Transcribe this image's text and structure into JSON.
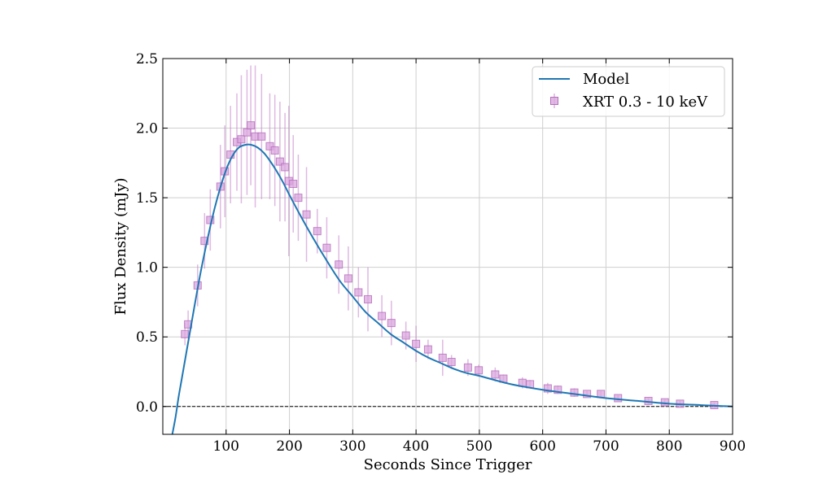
{
  "chart_data": {
    "type": "line",
    "title": "",
    "xlabel": "Seconds Since Trigger",
    "ylabel": "Flux Density (mJy)",
    "xlim": [
      0,
      900
    ],
    "ylim": [
      -0.2,
      2.5
    ],
    "xticks": [
      100,
      200,
      300,
      400,
      500,
      600,
      700,
      800,
      900
    ],
    "yticks": [
      0.0,
      0.5,
      1.0,
      1.5,
      2.0,
      2.5
    ],
    "xtick_labels": [
      "100",
      "200",
      "300",
      "400",
      "500",
      "600",
      "700",
      "800",
      "900"
    ],
    "ytick_labels": [
      "0.0",
      "0.5",
      "1.0",
      "1.5",
      "2.0",
      "2.5"
    ],
    "grid": true,
    "reference_line": {
      "y": 0.0,
      "style": "dashed"
    },
    "legend_position": "top-right",
    "colors": {
      "model": "#1f77b4",
      "data": "#c27fc8",
      "grid": "#cfcfcf",
      "reference": "#000000"
    },
    "series": [
      {
        "name": "Model",
        "kind": "line",
        "x": [
          15,
          20,
          25,
          30,
          40,
          50,
          60,
          70,
          80,
          90,
          100,
          110,
          120,
          130,
          140,
          150,
          160,
          170,
          180,
          190,
          200,
          220,
          240,
          260,
          280,
          300,
          320,
          340,
          360,
          380,
          400,
          420,
          440,
          460,
          480,
          500,
          550,
          600,
          650,
          700,
          750,
          800,
          850,
          900
        ],
        "y": [
          -0.2,
          -0.08,
          0.07,
          0.2,
          0.46,
          0.72,
          0.97,
          1.19,
          1.39,
          1.56,
          1.7,
          1.8,
          1.86,
          1.88,
          1.88,
          1.86,
          1.82,
          1.76,
          1.69,
          1.61,
          1.52,
          1.35,
          1.19,
          1.04,
          0.9,
          0.79,
          0.68,
          0.6,
          0.52,
          0.46,
          0.4,
          0.35,
          0.31,
          0.27,
          0.24,
          0.22,
          0.16,
          0.12,
          0.09,
          0.06,
          0.04,
          0.02,
          0.01,
          0.0
        ]
      },
      {
        "name": "XRT 0.3 - 10 keV",
        "kind": "errorbar",
        "marker": "square",
        "x": [
          35,
          40,
          55,
          66,
          75,
          91,
          98,
          107,
          117,
          124,
          133,
          139,
          146,
          156,
          169,
          177,
          185,
          193,
          199,
          206,
          214,
          227,
          244,
          259,
          278,
          293,
          309,
          324,
          346,
          361,
          384,
          400,
          419,
          442,
          456,
          482,
          499,
          525,
          538,
          568,
          580,
          608,
          624,
          650,
          670,
          692,
          719,
          767,
          793,
          817,
          871
        ],
        "y": [
          0.52,
          0.59,
          0.87,
          1.19,
          1.34,
          1.58,
          1.69,
          1.81,
          1.9,
          1.92,
          1.97,
          2.02,
          1.94,
          1.94,
          1.87,
          1.84,
          1.76,
          1.72,
          1.62,
          1.6,
          1.5,
          1.38,
          1.26,
          1.14,
          1.02,
          0.92,
          0.82,
          0.77,
          0.65,
          0.6,
          0.51,
          0.45,
          0.41,
          0.35,
          0.32,
          0.28,
          0.26,
          0.23,
          0.2,
          0.17,
          0.16,
          0.13,
          0.12,
          0.1,
          0.09,
          0.09,
          0.06,
          0.04,
          0.03,
          0.02,
          0.01
        ],
        "yerr": [
          0.08,
          0.1,
          0.15,
          0.2,
          0.22,
          0.3,
          0.33,
          0.35,
          0.35,
          0.46,
          0.45,
          0.43,
          0.51,
          0.45,
          0.38,
          0.4,
          0.43,
          0.39,
          0.54,
          0.35,
          0.31,
          0.34,
          0.16,
          0.22,
          0.21,
          0.23,
          0.18,
          0.23,
          0.15,
          0.16,
          0.1,
          0.13,
          0.07,
          0.13,
          0.05,
          0.06,
          0.04,
          0.05,
          0.03,
          0.04,
          0.03,
          0.04,
          0.03,
          0.03,
          0.02,
          0.02,
          0.02,
          0.02,
          0.02,
          0.02,
          0.02
        ]
      }
    ]
  }
}
